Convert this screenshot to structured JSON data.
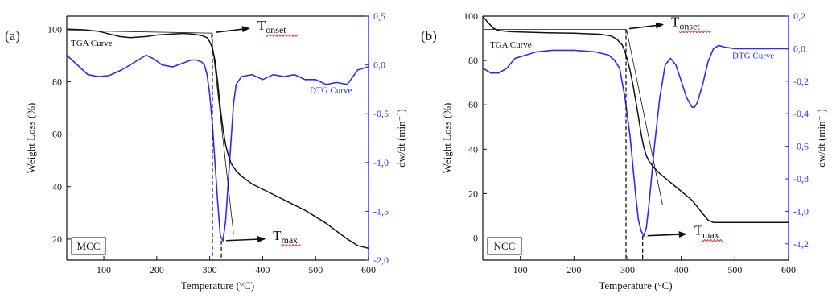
{
  "colors": {
    "tga": "#111111",
    "dtg": "#2b2bff",
    "squiggle": "#e03030"
  },
  "chart_data": [
    {
      "type": "line",
      "panel_label": "(a)",
      "sample_label": "MCC",
      "xlabel": "Temperature (°C)",
      "ylabel_left": "Weight Loss (%)",
      "ylabel_right": "dw/dt (min⁻¹)",
      "xlim": [
        30,
        600
      ],
      "ylim_left": [
        12,
        105
      ],
      "ylim_right": [
        -2.0,
        0.5
      ],
      "xticks": [
        100,
        200,
        300,
        400,
        500,
        600
      ],
      "yticks_left": [
        20,
        40,
        60,
        80,
        100
      ],
      "yticks_right": [
        0.5,
        0.0,
        -0.5,
        -1.0,
        -1.5,
        -2.0
      ],
      "yticks_right_labels": [
        "0,5",
        "0,0",
        "-0,5",
        "-1,0",
        "-1,5",
        "-2,0"
      ],
      "tga_label": "TGA Curve",
      "dtg_label": "DTG Curve",
      "onset_main": "T",
      "onset_sub": "onset",
      "max_main": "T",
      "max_sub": "max",
      "t_onset": 305,
      "t_max": 322,
      "series": [
        {
          "name": "TGA Curve",
          "axis": "left",
          "x": [
            30,
            60,
            90,
            110,
            130,
            150,
            180,
            200,
            230,
            250,
            270,
            285,
            295,
            300,
            305,
            310,
            315,
            320,
            325,
            330,
            335,
            340,
            350,
            360,
            380,
            400,
            420,
            450,
            480,
            500,
            520,
            540,
            560,
            580,
            600
          ],
          "y": [
            100,
            99.8,
            99.2,
            98.2,
            97.2,
            96.8,
            97.2,
            97.8,
            98.2,
            98.4,
            98.1,
            97.6,
            96.8,
            95.2,
            93,
            88,
            80,
            70,
            62,
            56,
            52,
            49,
            46,
            44,
            41,
            39,
            37,
            34,
            31,
            28.5,
            26,
            23,
            20,
            17.5,
            16.5
          ]
        },
        {
          "name": "DTG Curve",
          "axis": "right",
          "x": [
            30,
            50,
            70,
            90,
            110,
            130,
            150,
            165,
            180,
            195,
            210,
            230,
            250,
            265,
            275,
            285,
            290,
            295,
            300,
            305,
            310,
            315,
            320,
            325,
            330,
            335,
            340,
            345,
            350,
            360,
            380,
            400,
            420,
            440,
            460,
            480,
            500,
            520,
            540,
            560,
            580,
            600
          ],
          "y": [
            0.1,
            0.0,
            -0.1,
            -0.12,
            -0.11,
            -0.06,
            0.0,
            0.05,
            0.1,
            0.06,
            0.0,
            -0.02,
            0.02,
            0.05,
            0.05,
            0.03,
            0.0,
            -0.1,
            -0.3,
            -0.6,
            -1.0,
            -1.4,
            -1.75,
            -1.8,
            -1.6,
            -1.2,
            -0.8,
            -0.4,
            -0.2,
            -0.12,
            -0.1,
            -0.15,
            -0.1,
            -0.12,
            -0.1,
            -0.15,
            -0.15,
            -0.2,
            -0.18,
            -0.2,
            -0.05,
            -0.02
          ]
        }
      ]
    },
    {
      "type": "line",
      "panel_label": "(b)",
      "sample_label": "NCC",
      "xlabel": "Temperature (°C)",
      "ylabel_left": "Weight Loss (%)",
      "ylabel_right": "dw/dt (min⁻¹)",
      "xlim": [
        30,
        600
      ],
      "ylim_left": [
        -10,
        100
      ],
      "ylim_right": [
        -1.3,
        0.2
      ],
      "xticks": [
        100,
        200,
        300,
        400,
        500,
        600
      ],
      "yticks_left": [
        0,
        20,
        40,
        60,
        80,
        100
      ],
      "yticks_right": [
        0.2,
        0.0,
        -0.2,
        -0.4,
        -0.6,
        -0.8,
        -1.0,
        -1.2
      ],
      "yticks_right_labels": [
        "0,2",
        "0,0",
        "-0,2",
        "-0,4",
        "-0,6",
        "-0,8",
        "-1,0",
        "-1,2"
      ],
      "tga_label": "TGA Curve",
      "dtg_label": "DTG Curve",
      "onset_main": "T",
      "onset_sub": "onset",
      "max_main": "T",
      "max_sub": "max",
      "t_onset": 297,
      "t_max": 328,
      "series": [
        {
          "name": "TGA Curve",
          "axis": "left",
          "x": [
            30,
            40,
            50,
            60,
            80,
            100,
            150,
            200,
            250,
            270,
            280,
            290,
            295,
            300,
            305,
            310,
            315,
            320,
            325,
            330,
            335,
            340,
            345,
            350,
            360,
            380,
            400,
            420,
            440,
            450,
            460,
            480,
            500,
            550,
            600
          ],
          "y": [
            100,
            97,
            94.5,
            93.5,
            93,
            92.8,
            92.5,
            92.3,
            91.8,
            91,
            89.5,
            87,
            84,
            80,
            75,
            69,
            62,
            55,
            47,
            41,
            37,
            34.5,
            33,
            31.5,
            29,
            25,
            21,
            17,
            11,
            8,
            7,
            7,
            7,
            7,
            7
          ]
        },
        {
          "name": "DTG Curve",
          "axis": "right",
          "x": [
            30,
            45,
            60,
            75,
            90,
            110,
            130,
            160,
            200,
            240,
            265,
            275,
            285,
            295,
            305,
            315,
            320,
            325,
            330,
            335,
            340,
            350,
            360,
            370,
            380,
            390,
            400,
            410,
            420,
            425,
            430,
            440,
            450,
            460,
            470,
            480,
            500,
            550,
            600
          ],
          "y": [
            -0.12,
            -0.15,
            -0.15,
            -0.12,
            -0.06,
            -0.04,
            -0.02,
            -0.01,
            -0.01,
            -0.02,
            -0.04,
            -0.07,
            -0.12,
            -0.3,
            -0.55,
            -0.9,
            -1.05,
            -1.12,
            -1.15,
            -1.1,
            -0.95,
            -0.6,
            -0.3,
            -0.1,
            -0.06,
            -0.1,
            -0.2,
            -0.3,
            -0.36,
            -0.36,
            -0.33,
            -0.22,
            -0.08,
            0.0,
            0.02,
            0.01,
            0.0,
            0.0,
            0.0
          ]
        }
      ]
    }
  ]
}
